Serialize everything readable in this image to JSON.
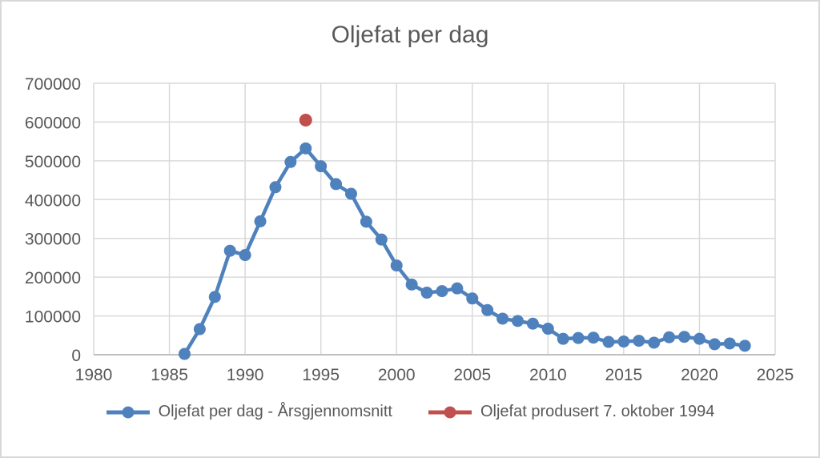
{
  "window": {
    "background": "#ffffff",
    "frame_border_color": "#d8d8d8"
  },
  "chart_data": {
    "type": "line",
    "title": "Oljefat per dag",
    "xlabel": "",
    "ylabel": "",
    "xlim": [
      1980,
      2025
    ],
    "ylim": [
      0,
      700000
    ],
    "x_ticks": [
      1980,
      1985,
      1990,
      1995,
      2000,
      2005,
      2010,
      2015,
      2020,
      2025
    ],
    "y_ticks": [
      0,
      100000,
      200000,
      300000,
      400000,
      500000,
      600000,
      700000
    ],
    "grid": true,
    "legend_position": "bottom",
    "colors": {
      "gridline": "#d9d9d9",
      "axis_line": "#bfbfbf",
      "tick_label": "#595959",
      "title": "#595959"
    },
    "series": [
      {
        "name": "Oljefat per dag - Årsgjennomsnitt",
        "type": "line",
        "color": "#4f81bd",
        "x": [
          1986,
          1987,
          1988,
          1989,
          1990,
          1991,
          1992,
          1993,
          1994,
          1995,
          1996,
          1997,
          1998,
          1999,
          2000,
          2001,
          2002,
          2003,
          2004,
          2005,
          2006,
          2007,
          2008,
          2009,
          2010,
          2011,
          2012,
          2013,
          2014,
          2015,
          2016,
          2017,
          2018,
          2019,
          2020,
          2021,
          2022,
          2023
        ],
        "y": [
          2000,
          66000,
          149000,
          268000,
          257000,
          344000,
          432000,
          497000,
          532000,
          486000,
          440000,
          415000,
          343000,
          297000,
          230000,
          181000,
          160000,
          164000,
          171000,
          145000,
          115000,
          93000,
          87000,
          80000,
          67000,
          41000,
          43000,
          44000,
          33000,
          34000,
          36000,
          31000,
          45000,
          46000,
          41000,
          27000,
          29000,
          23000
        ]
      },
      {
        "name": "Oljefat produsert 7. oktober 1994",
        "type": "scatter",
        "color": "#c0504d",
        "x": [
          1994
        ],
        "y": [
          605000
        ]
      }
    ]
  }
}
